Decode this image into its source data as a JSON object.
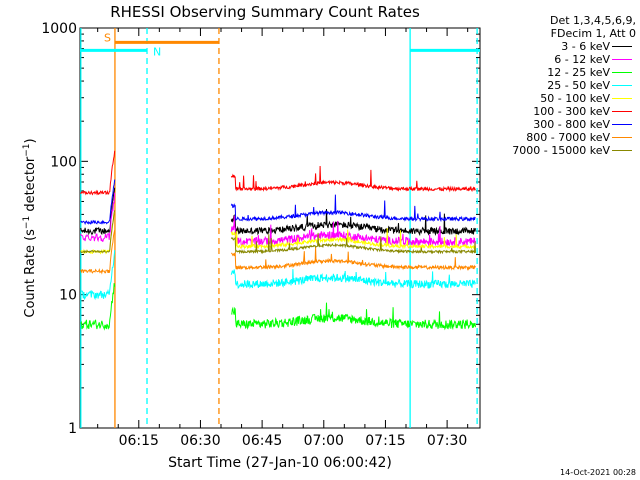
{
  "chart_data": {
    "type": "line",
    "title": "RHESSI Observing Summary Count Rates",
    "xlabel": "Start Time (27-Jan-10 06:00:42)",
    "ylabel_prefix": "Count Rate (s",
    "ylabel_mid": " detector",
    "ylabel_suffix": ")",
    "ylabel_sup": "−1",
    "y_scale": "log",
    "ylim": [
      1,
      1000
    ],
    "y_ticks": [
      {
        "value": 1,
        "label": "1"
      },
      {
        "value": 10,
        "label": "10"
      },
      {
        "value": 100,
        "label": "100"
      },
      {
        "value": 1000,
        "label": "1000"
      }
    ],
    "xlim_minutes": [
      0.7,
      98
    ],
    "x_ticks": [
      {
        "minute": 15,
        "label": "06:15"
      },
      {
        "minute": 30,
        "label": "06:30"
      },
      {
        "minute": 45,
        "label": "06:45"
      },
      {
        "minute": 60,
        "label": "07:00"
      },
      {
        "minute": 75,
        "label": "07:15"
      },
      {
        "minute": 90,
        "label": "07:30"
      }
    ],
    "legend_header": [
      "Det 1,3,4,5,6,9,",
      "FDecim 1, Att 0"
    ],
    "series": [
      {
        "name": "3 - 6 keV",
        "color": "#000000",
        "level_pre": 30,
        "level_post": 30,
        "noise": 0.06
      },
      {
        "name": "6 - 12 keV",
        "color": "#ff00ff",
        "level_pre": 27,
        "level_post": 25,
        "noise": 0.07
      },
      {
        "name": "12 - 25 keV",
        "color": "#00ff00",
        "level_pre": 6,
        "level_post": 6,
        "noise": 0.08
      },
      {
        "name": "25 - 50 keV",
        "color": "#00ffff",
        "level_pre": 10,
        "level_post": 12,
        "noise": 0.07
      },
      {
        "name": "50 - 100 keV",
        "color": "#ffff00",
        "level_pre": 21,
        "level_post": 23,
        "noise": 0.03
      },
      {
        "name": "100 - 300 keV",
        "color": "#ff0000",
        "level_pre": 58,
        "level_post": 62,
        "noise": 0.03
      },
      {
        "name": "300 - 800 keV",
        "color": "#0000ff",
        "level_pre": 35,
        "level_post": 37,
        "noise": 0.03
      },
      {
        "name": "800 - 7000 keV",
        "color": "#ff8800",
        "level_pre": 15,
        "level_post": 16,
        "noise": 0.03
      },
      {
        "name": "7000 - 15000 keV",
        "color": "#888800",
        "level_pre": 21,
        "level_post": 21,
        "noise": 0.02
      }
    ],
    "data_gap_minutes": [
      9.2,
      37.5
    ],
    "night_bars": [
      {
        "label": "N",
        "color": "#00ffff",
        "segments": [
          [
            0.7,
            17
          ],
          [
            81,
            98
          ]
        ],
        "level": 680
      }
    ],
    "saa_bars": [
      {
        "label": "S",
        "color": "#ff8800",
        "segments": [
          [
            9.2,
            34.5
          ]
        ],
        "level": 780
      }
    ],
    "vertical_markers": [
      {
        "minute": 0.9,
        "color": "#00ffff",
        "style": "solid"
      },
      {
        "minute": 17,
        "color": "#00ffff",
        "style": "dashed"
      },
      {
        "minute": 9.2,
        "color": "#ff8800",
        "style": "solid"
      },
      {
        "minute": 34.5,
        "color": "#ff8800",
        "style": "dashed"
      },
      {
        "minute": 81,
        "color": "#00ffff",
        "style": "solid"
      },
      {
        "minute": 97.3,
        "color": "#00ffff",
        "style": "dashed"
      }
    ]
  },
  "timestamp": "14-Oct-2021 00:28"
}
